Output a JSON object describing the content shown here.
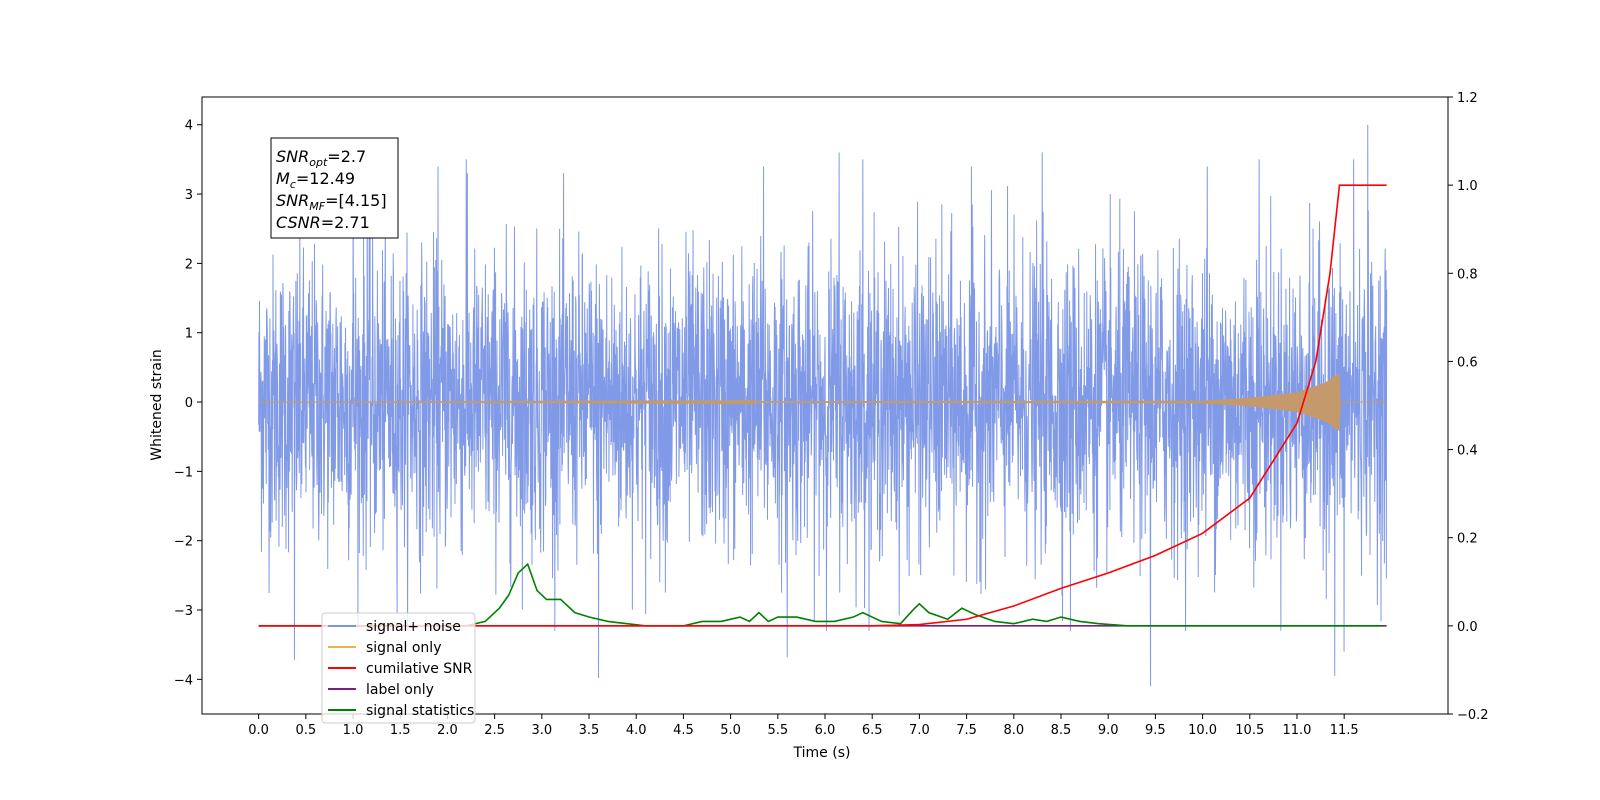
{
  "chart_data": {
    "type": "line",
    "title": "",
    "xlabel": "Time (s)",
    "ylabel": "Whitened strain",
    "y2label": "",
    "xlim": [
      -0.6,
      12.6
    ],
    "ylim": [
      -4.5,
      4.4
    ],
    "y2lim": [
      -0.2,
      1.2
    ],
    "grid": false,
    "legend_location": "lower-left",
    "x_ticks": [
      "0.0",
      "0.5",
      "1.0",
      "1.5",
      "2.0",
      "2.5",
      "3.0",
      "3.5",
      "4.0",
      "4.5",
      "5.0",
      "5.5",
      "6.0",
      "6.5",
      "7.0",
      "7.5",
      "8.0",
      "8.5",
      "9.0",
      "9.5",
      "10.0",
      "10.5",
      "11.0",
      "11.5"
    ],
    "y_ticks": [
      "−4",
      "−3",
      "−2",
      "−1",
      "0",
      "1",
      "2",
      "3",
      "4"
    ],
    "y2_ticks": [
      "−0.2",
      "0.0",
      "0.2",
      "0.4",
      "0.6",
      "0.8",
      "1.0",
      "1.2"
    ],
    "annotation": {
      "lines": [
        {
          "sym": "SNR",
          "sub": "opt",
          "val": "=2.7"
        },
        {
          "sym": "M",
          "sub": "c",
          "val": "=12.49"
        },
        {
          "sym": "SNR",
          "sub": "MF",
          "val": "=[4.15]"
        },
        {
          "sym": "CSNR",
          "sub": "",
          "val": "=2.71"
        }
      ]
    },
    "series": [
      {
        "name": "signal+ noise",
        "color": "#7a95e6",
        "axis": "left",
        "description_range": [
          -2.5,
          2.5
        ],
        "x": [
          0.0,
          11.95
        ],
        "peaks": [
          [
            0.38,
            -3.72
          ],
          [
            1.0,
            3.2
          ],
          [
            1.15,
            3.45
          ],
          [
            1.9,
            3.4
          ],
          [
            2.2,
            3.5
          ],
          [
            3.6,
            -3.98
          ],
          [
            5.35,
            3.4
          ],
          [
            5.6,
            -3.68
          ],
          [
            6.15,
            3.6
          ],
          [
            6.4,
            3.5
          ],
          [
            7.55,
            3.4
          ],
          [
            8.3,
            3.6
          ],
          [
            8.6,
            -3.3
          ],
          [
            9.45,
            -4.1
          ],
          [
            10.05,
            3.4
          ],
          [
            10.6,
            3.5
          ],
          [
            11.4,
            -3.95
          ],
          [
            11.5,
            -3.6
          ],
          [
            11.6,
            3.5
          ],
          [
            11.75,
            4.0
          ]
        ]
      },
      {
        "name": "signal only",
        "color": "#f0b24a",
        "axis": "left",
        "x": [
          0.0,
          10.0,
          10.5,
          11.0,
          11.3,
          11.45,
          11.46,
          11.95
        ],
        "amplitude": [
          0.0,
          0.02,
          0.06,
          0.14,
          0.28,
          0.42,
          0.0,
          0.0
        ]
      },
      {
        "name": "cumilative SNR",
        "color": "#ff0000",
        "axis": "right",
        "x": [
          0.0,
          6.5,
          7.0,
          7.5,
          8.0,
          8.5,
          9.0,
          9.5,
          10.0,
          10.5,
          11.0,
          11.2,
          11.35,
          11.45,
          11.95
        ],
        "y": [
          0.0,
          0.0,
          0.003,
          0.015,
          0.045,
          0.085,
          0.12,
          0.16,
          0.21,
          0.29,
          0.46,
          0.6,
          0.8,
          1.0,
          1.0
        ]
      },
      {
        "name": "label only",
        "color": "#7b1f7f",
        "axis": "right",
        "x": [
          0.0,
          11.95
        ],
        "y": [
          0.0,
          0.0
        ]
      },
      {
        "name": "signal statistics",
        "color": "#008000",
        "axis": "right",
        "x": [
          0.0,
          2.2,
          2.4,
          2.55,
          2.65,
          2.75,
          2.85,
          2.95,
          3.05,
          3.2,
          3.35,
          3.5,
          3.7,
          3.9,
          4.1,
          4.5,
          4.7,
          4.9,
          5.1,
          5.2,
          5.3,
          5.4,
          5.5,
          5.7,
          5.9,
          6.1,
          6.3,
          6.4,
          6.5,
          6.6,
          6.8,
          6.95,
          7.0,
          7.1,
          7.3,
          7.45,
          7.5,
          7.6,
          7.8,
          8.0,
          8.2,
          8.35,
          8.5,
          8.7,
          8.9,
          9.2,
          9.5,
          11.9
        ],
        "y": [
          0.0,
          0.0,
          0.01,
          0.04,
          0.07,
          0.12,
          0.14,
          0.08,
          0.06,
          0.06,
          0.03,
          0.02,
          0.01,
          0.005,
          0.0,
          0.0,
          0.01,
          0.01,
          0.02,
          0.01,
          0.03,
          0.01,
          0.02,
          0.02,
          0.01,
          0.01,
          0.02,
          0.03,
          0.02,
          0.01,
          0.005,
          0.04,
          0.05,
          0.03,
          0.015,
          0.04,
          0.035,
          0.025,
          0.01,
          0.005,
          0.015,
          0.01,
          0.02,
          0.01,
          0.005,
          0.0,
          0.0,
          0.0
        ]
      }
    ],
    "legend": [
      {
        "label": "signal+ noise",
        "color": "#7a95e6"
      },
      {
        "label": "signal only",
        "color": "#f0b24a"
      },
      {
        "label": "cumilative SNR",
        "color": "#ff0000"
      },
      {
        "label": "label only",
        "color": "#7b1f7f"
      },
      {
        "label": "signal statistics",
        "color": "#008000"
      }
    ]
  }
}
